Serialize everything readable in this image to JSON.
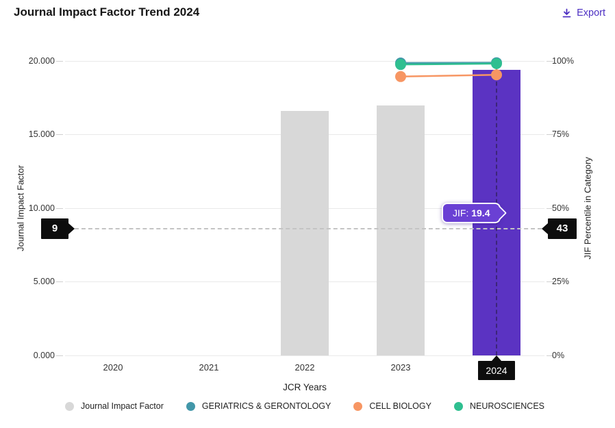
{
  "header": {
    "title": "Journal Impact Factor Trend 2024",
    "export_label": "Export"
  },
  "chart_data": {
    "type": "bar+line",
    "title": "Journal Impact Factor Trend 2024",
    "categories": [
      "2020",
      "2021",
      "2022",
      "2023",
      "2024"
    ],
    "highlighted_year": "2024",
    "xlabel": "JCR Years",
    "ylabel_left": "Journal Impact Factor",
    "ylabel_right": "JIF Percentile in Category",
    "ylim_left": [
      0,
      20
    ],
    "ylim_right": [
      0,
      100
    ],
    "left_ticks": [
      "20.000",
      "15.000",
      "10.000",
      "5.000",
      "0.000"
    ],
    "right_ticks": [
      "100%",
      "75%",
      "50%",
      "25%",
      "0%"
    ],
    "grid": true,
    "legend_position": "bottom",
    "series": [
      {
        "name": "Journal Impact Factor",
        "type": "bar",
        "axis": "left",
        "color": "#d8d8d8",
        "highlight_color": "#5b33c2",
        "values": [
          null,
          null,
          16.6,
          17.0,
          19.4
        ]
      },
      {
        "name": "GERIATRICS & GERONTOLOGY",
        "type": "line",
        "axis": "right",
        "color": "#4297a9",
        "values": [
          null,
          null,
          null,
          99.3,
          99.4
        ]
      },
      {
        "name": "CELL BIOLOGY",
        "type": "line",
        "axis": "right",
        "color": "#f79663",
        "values": [
          null,
          null,
          null,
          94.7,
          95.3
        ]
      },
      {
        "name": "NEUROSCIENCES",
        "type": "line",
        "axis": "right",
        "color": "#2fbf90",
        "values": [
          null,
          null,
          null,
          98.8,
          99.1
        ]
      }
    ],
    "reference_markers": {
      "jif_value": "9",
      "percentile_value": "43",
      "percentile_position": 43
    },
    "tooltip": {
      "prefix": "JIF:",
      "value": "19.4"
    }
  },
  "colors": {
    "accent_purple": "#5b33c2",
    "export_purple": "#4c2fc2",
    "marker_black": "#0d0d0d",
    "bar_gray": "#d8d8d8"
  }
}
